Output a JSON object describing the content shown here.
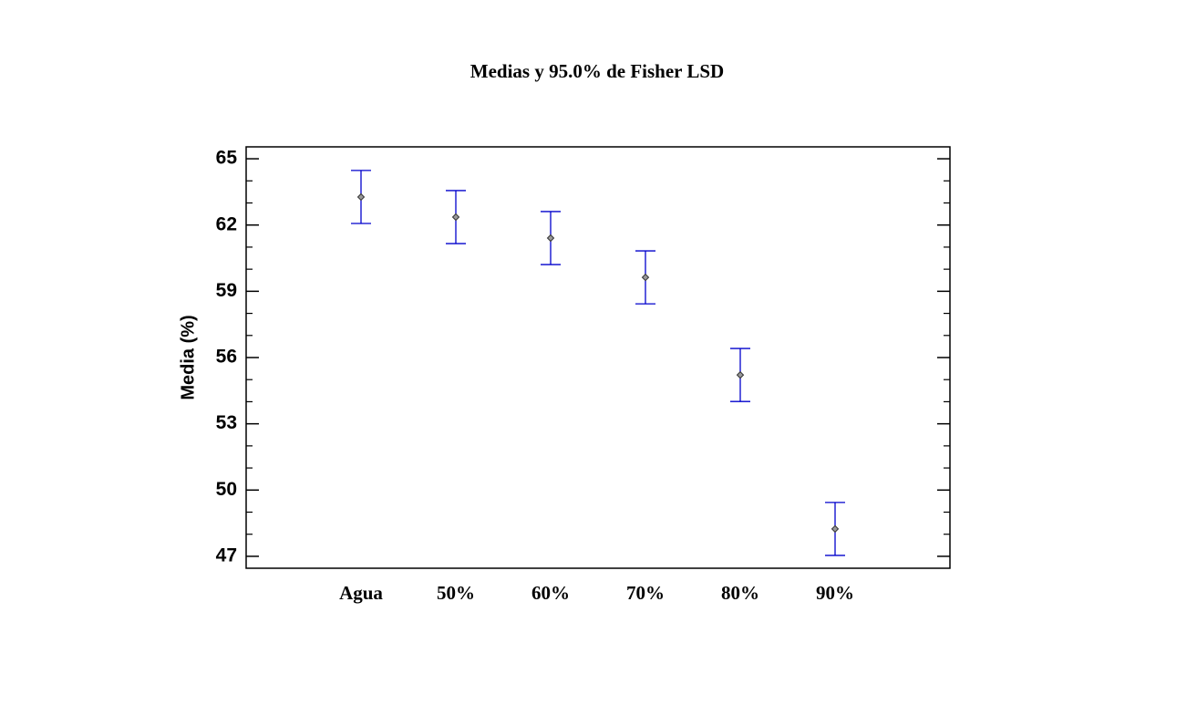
{
  "chart_data": {
    "type": "errorbar",
    "title": "Medias y 95.0% de Fisher LSD",
    "y_label": "Media (%)",
    "categories": [
      "Agua",
      "50%",
      "60%",
      "70%",
      "80%",
      "90%"
    ],
    "values": [
      63.27,
      62.36,
      61.41,
      59.63,
      55.21,
      48.24
    ],
    "errors": [
      1.2,
      1.2,
      1.2,
      1.2,
      1.2,
      1.2
    ],
    "color": "#0000cc",
    "marker_color": "#999999",
    "ylim": [
      46.46,
      65.54
    ],
    "yticks": [
      47,
      50,
      53,
      56,
      59,
      62,
      65
    ],
    "yminorticks": [
      48,
      49,
      51,
      52,
      54,
      55,
      57,
      58,
      60,
      61,
      63,
      64
    ],
    "grid": false
  }
}
